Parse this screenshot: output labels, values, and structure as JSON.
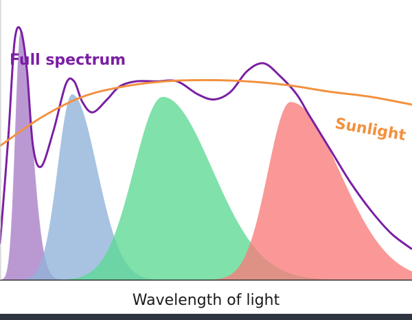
{
  "chart_data": {
    "type": "area",
    "title": "",
    "xlabel": "Wavelength of light",
    "ylabel": "",
    "x_range": [
      0,
      1
    ],
    "y_range": [
      0,
      1
    ],
    "grid": false,
    "series": [
      {
        "name": "",
        "kind": "area",
        "color": "#a77cc6",
        "peak_x": 0.05,
        "peak_y": 0.97,
        "sigma_left": 0.013,
        "sigma_right": 0.027
      },
      {
        "name": "",
        "kind": "area",
        "color": "#8fb2d8",
        "peak_x": 0.175,
        "peak_y": 0.72,
        "sigma_left": 0.035,
        "sigma_right": 0.06
      },
      {
        "name": "",
        "kind": "area",
        "color": "#5cd993",
        "peak_x": 0.395,
        "peak_y": 0.71,
        "sigma_left": 0.07,
        "sigma_right": 0.12
      },
      {
        "name": "",
        "kind": "area",
        "color": "#f87b7b",
        "peak_x": 0.705,
        "peak_y": 0.69,
        "sigma_left": 0.055,
        "sigma_right": 0.12
      },
      {
        "name": "Full spectrum",
        "kind": "line",
        "color": "#7a1fa2",
        "points": [
          [
            0.0,
            0.14
          ],
          [
            0.02,
            0.55
          ],
          [
            0.035,
            0.92
          ],
          [
            0.05,
            0.97
          ],
          [
            0.065,
            0.82
          ],
          [
            0.08,
            0.52
          ],
          [
            0.1,
            0.44
          ],
          [
            0.13,
            0.58
          ],
          [
            0.16,
            0.76
          ],
          [
            0.18,
            0.77
          ],
          [
            0.2,
            0.69
          ],
          [
            0.225,
            0.65
          ],
          [
            0.26,
            0.7
          ],
          [
            0.29,
            0.75
          ],
          [
            0.33,
            0.77
          ],
          [
            0.38,
            0.77
          ],
          [
            0.43,
            0.77
          ],
          [
            0.48,
            0.72
          ],
          [
            0.52,
            0.7
          ],
          [
            0.56,
            0.73
          ],
          [
            0.6,
            0.81
          ],
          [
            0.64,
            0.84
          ],
          [
            0.68,
            0.79
          ],
          [
            0.72,
            0.72
          ],
          [
            0.75,
            0.64
          ],
          [
            0.8,
            0.51
          ],
          [
            0.85,
            0.38
          ],
          [
            0.9,
            0.27
          ],
          [
            0.95,
            0.18
          ],
          [
            1.0,
            0.12
          ]
        ]
      },
      {
        "name": "Sunlight",
        "kind": "line",
        "color": "#f2913f",
        "points": [
          [
            0.0,
            0.52
          ],
          [
            0.1,
            0.63
          ],
          [
            0.2,
            0.71
          ],
          [
            0.3,
            0.75
          ],
          [
            0.4,
            0.77
          ],
          [
            0.5,
            0.775
          ],
          [
            0.6,
            0.77
          ],
          [
            0.7,
            0.755
          ],
          [
            0.8,
            0.73
          ],
          [
            0.9,
            0.71
          ],
          [
            1.0,
            0.68
          ]
        ]
      }
    ]
  }
}
